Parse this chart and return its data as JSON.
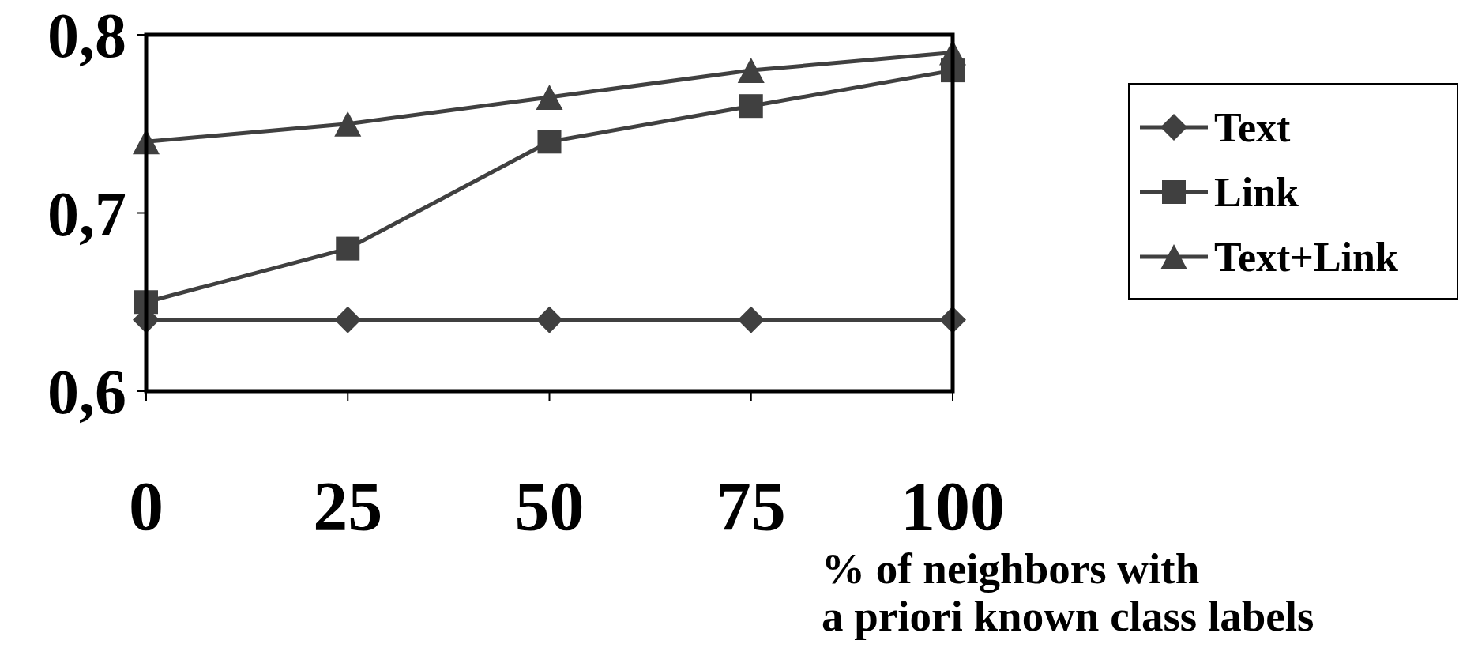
{
  "chart_data": {
    "type": "line",
    "xlabel": "% of neighbors with\na priori known class labels",
    "x": [
      0,
      25,
      50,
      75,
      100
    ],
    "xlim": [
      0,
      100
    ],
    "xticks": [
      0,
      25,
      50,
      75,
      100
    ],
    "ylim": [
      0.6,
      0.8
    ],
    "yticks": [
      {
        "value": 0.6,
        "label": "0,6"
      },
      {
        "value": 0.7,
        "label": "0,7"
      },
      {
        "value": 0.8,
        "label": "0,8"
      }
    ],
    "grid": false,
    "legend": "right",
    "line_style": "solid",
    "series": [
      {
        "name": "Text",
        "color": "#404040",
        "marker": "diamond",
        "values": [
          0.64,
          0.64,
          0.64,
          0.64,
          0.64
        ]
      },
      {
        "name": "Link",
        "color": "#404040",
        "marker": "square",
        "values": [
          0.65,
          0.68,
          0.74,
          0.76,
          0.78
        ]
      },
      {
        "name": "Text+Link",
        "color": "#404040",
        "marker": "triangle",
        "values": [
          0.74,
          0.75,
          0.765,
          0.78,
          0.79
        ]
      }
    ]
  }
}
